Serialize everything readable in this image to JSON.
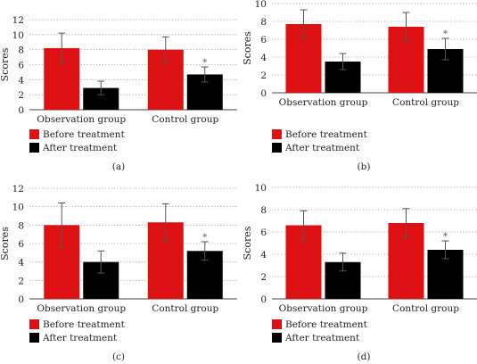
{
  "chart_data": [
    {
      "type": "bar",
      "panel_label": "(a)",
      "ylabel": "Scores",
      "ylim": [
        0,
        12
      ],
      "yticks": [
        0,
        2,
        4,
        6,
        8,
        10,
        12
      ],
      "grid": "dotted-horizontal",
      "categories": [
        "Observation group",
        "Control group"
      ],
      "series": [
        {
          "name": "Before treatment",
          "color": "#dd1111",
          "values": [
            8.2,
            8.0
          ],
          "errors": [
            2.0,
            1.7
          ]
        },
        {
          "name": "After treatment",
          "color": "#000000",
          "values": [
            2.9,
            4.7
          ],
          "errors": [
            0.9,
            1.0
          ]
        }
      ],
      "annotations": [
        {
          "category": "Control group",
          "series": "After treatment",
          "text": "*"
        }
      ]
    },
    {
      "type": "bar",
      "panel_label": "(b)",
      "ylabel": "Scores",
      "ylim": [
        0,
        10
      ],
      "yticks": [
        0,
        2,
        4,
        6,
        8,
        10
      ],
      "grid": "dotted-horizontal",
      "categories": [
        "Observation group",
        "Control group"
      ],
      "series": [
        {
          "name": "Before treatment",
          "color": "#dd1111",
          "values": [
            7.7,
            7.4
          ],
          "errors": [
            1.6,
            1.6
          ]
        },
        {
          "name": "After treatment",
          "color": "#000000",
          "values": [
            3.5,
            4.9
          ],
          "errors": [
            0.9,
            1.2
          ]
        }
      ],
      "annotations": [
        {
          "category": "Control group",
          "series": "After treatment",
          "text": "*"
        }
      ]
    },
    {
      "type": "bar",
      "panel_label": "(c)",
      "ylabel": "Scores",
      "ylim": [
        0,
        12
      ],
      "yticks": [
        0,
        2,
        4,
        6,
        8,
        10,
        12
      ],
      "grid": "dotted-horizontal",
      "categories": [
        "Observation group",
        "Control group"
      ],
      "series": [
        {
          "name": "Before treatment",
          "color": "#dd1111",
          "values": [
            8.0,
            8.3
          ],
          "errors": [
            2.4,
            2.0
          ]
        },
        {
          "name": "After treatment",
          "color": "#000000",
          "values": [
            4.0,
            5.2
          ],
          "errors": [
            1.2,
            1.0
          ]
        }
      ],
      "annotations": [
        {
          "category": "Control group",
          "series": "After treatment",
          "text": "*"
        }
      ]
    },
    {
      "type": "bar",
      "panel_label": "(d)",
      "ylabel": "Scores",
      "ylim": [
        0,
        10
      ],
      "yticks": [
        0,
        2,
        4,
        6,
        8,
        10
      ],
      "grid": "dotted-horizontal",
      "categories": [
        "Observation group",
        "Control group"
      ],
      "series": [
        {
          "name": "Before treatment",
          "color": "#dd1111",
          "values": [
            6.6,
            6.8
          ],
          "errors": [
            1.3,
            1.3
          ]
        },
        {
          "name": "After treatment",
          "color": "#000000",
          "values": [
            3.3,
            4.4
          ],
          "errors": [
            0.8,
            0.8
          ]
        }
      ],
      "annotations": [
        {
          "category": "Control group",
          "series": "After treatment",
          "text": "*"
        }
      ]
    }
  ]
}
